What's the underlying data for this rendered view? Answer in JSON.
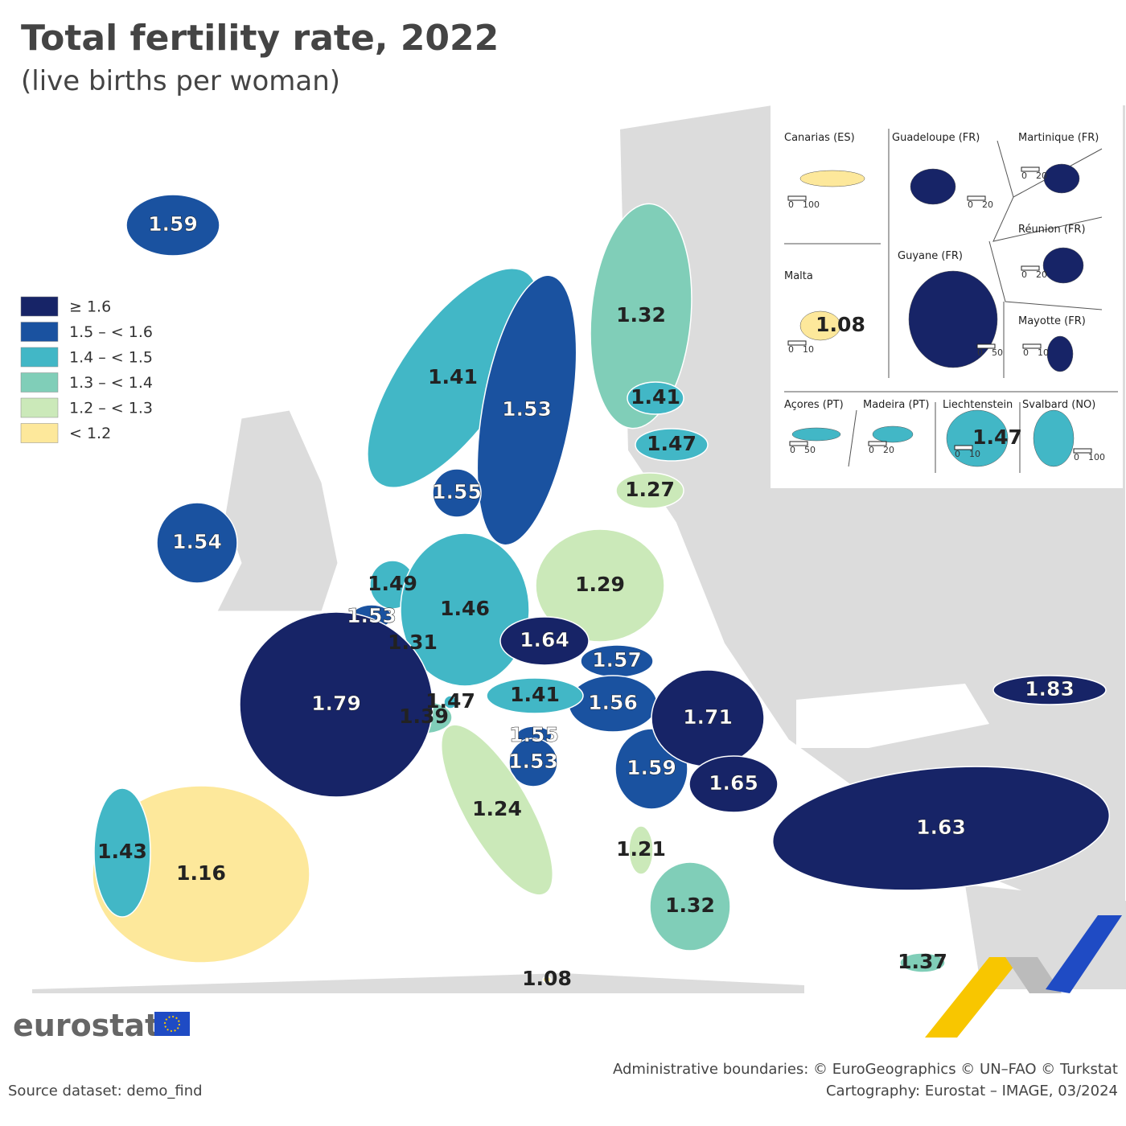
{
  "header": {
    "title": "Total fertility rate, 2022",
    "subtitle": "(live births per woman)"
  },
  "legend": [
    {
      "label": "≥ 1.6",
      "color": "#172467"
    },
    {
      "label": "1.5 – < 1.6",
      "color": "#1a52a0"
    },
    {
      "label": "1.4 – < 1.5",
      "color": "#42b7c6"
    },
    {
      "label": "1.3 – < 1.4",
      "color": "#80ceb8"
    },
    {
      "label": "1.2 – < 1.3",
      "color": "#cbe9b9"
    },
    {
      "label": "< 1.2",
      "color": "#fde89b"
    }
  ],
  "map": {
    "regions": [
      {
        "value": 1.59,
        "color": "#1a52a0"
      },
      {
        "value": 1.41,
        "color": "#42b7c6"
      },
      {
        "value": 1.53,
        "color": "#1a52a0"
      },
      {
        "value": 1.32,
        "color": "#80ceb8"
      },
      {
        "value": 1.41,
        "color": "#42b7c6"
      },
      {
        "value": 1.47,
        "color": "#42b7c6"
      },
      {
        "value": 1.27,
        "color": "#cbe9b9"
      },
      {
        "value": 1.55,
        "color": "#1a52a0"
      },
      {
        "value": 1.54,
        "color": "#1a52a0"
      },
      {
        "value": 1.49,
        "color": "#42b7c6"
      },
      {
        "value": 1.53,
        "color": "#1a52a0"
      },
      {
        "value": 1.31,
        "color": "#80ceb8"
      },
      {
        "value": 1.46,
        "color": "#42b7c6"
      },
      {
        "value": 1.29,
        "color": "#cbe9b9"
      },
      {
        "value": 1.64,
        "color": "#172467"
      },
      {
        "value": 1.57,
        "color": "#1a52a0"
      },
      {
        "value": 1.56,
        "color": "#1a52a0"
      },
      {
        "value": 1.41,
        "color": "#42b7c6"
      },
      {
        "value": 1.47,
        "color": "#42b7c6"
      },
      {
        "value": 1.39,
        "color": "#80ceb8"
      },
      {
        "value": 1.79,
        "color": "#172467"
      },
      {
        "value": 1.55,
        "color": "#1a52a0"
      },
      {
        "value": 1.53,
        "color": "#1a52a0"
      },
      {
        "value": 1.59,
        "color": "#1a52a0"
      },
      {
        "value": 1.71,
        "color": "#172467"
      },
      {
        "value": 1.65,
        "color": "#172467"
      },
      {
        "value": 1.83,
        "color": "#172467"
      },
      {
        "value": 1.63,
        "color": "#172467"
      },
      {
        "value": 1.24,
        "color": "#cbe9b9"
      },
      {
        "value": 1.21,
        "color": "#cbe9b9"
      },
      {
        "value": 1.32,
        "color": "#80ceb8"
      },
      {
        "value": 1.37,
        "color": "#80ceb8"
      },
      {
        "value": 1.08,
        "color": "#fde89b"
      },
      {
        "value": 1.16,
        "color": "#fde89b"
      },
      {
        "value": 1.43,
        "color": "#42b7c6"
      }
    ]
  },
  "insets": [
    {
      "name": "Canarias (ES)",
      "scale": [
        "0",
        "100"
      ],
      "color": "#fde89b"
    },
    {
      "name": "Guadeloupe (FR)",
      "scale": [
        "0",
        "20"
      ],
      "color": "#172467"
    },
    {
      "name": "Martinique (FR)",
      "scale": [
        "0",
        "20"
      ],
      "color": "#172467"
    },
    {
      "name": "Réunion (FR)",
      "scale": [
        "0",
        "20"
      ],
      "color": "#172467"
    },
    {
      "name": "Malta",
      "scale": [
        "0",
        "10"
      ],
      "color": "#fde89b",
      "value": 1.08
    },
    {
      "name": "Guyane (FR)",
      "scale": [
        "0",
        "50"
      ],
      "color": "#172467"
    },
    {
      "name": "Mayotte (FR)",
      "scale": [
        "0",
        "10"
      ],
      "color": "#172467"
    },
    {
      "name": "Açores (PT)",
      "scale": [
        "0",
        "50"
      ],
      "color": "#42b7c6"
    },
    {
      "name": "Madeira (PT)",
      "scale": [
        "0",
        "20"
      ],
      "color": "#42b7c6"
    },
    {
      "name": "Liechtenstein",
      "scale": [
        "0",
        "10"
      ],
      "color": "#42b7c6",
      "value": 1.47
    },
    {
      "name": "Svalbard (NO)",
      "scale": [
        "0",
        "100"
      ],
      "color": "#42b7c6"
    }
  ],
  "footer": {
    "logo": "eurostat",
    "credits": "Administrative boundaries: © EuroGeographics © UN–FAO © Turkstat",
    "cartography": "Cartography: Eurostat – IMAGE, 03/2024",
    "source": "Source dataset: demo_find"
  }
}
